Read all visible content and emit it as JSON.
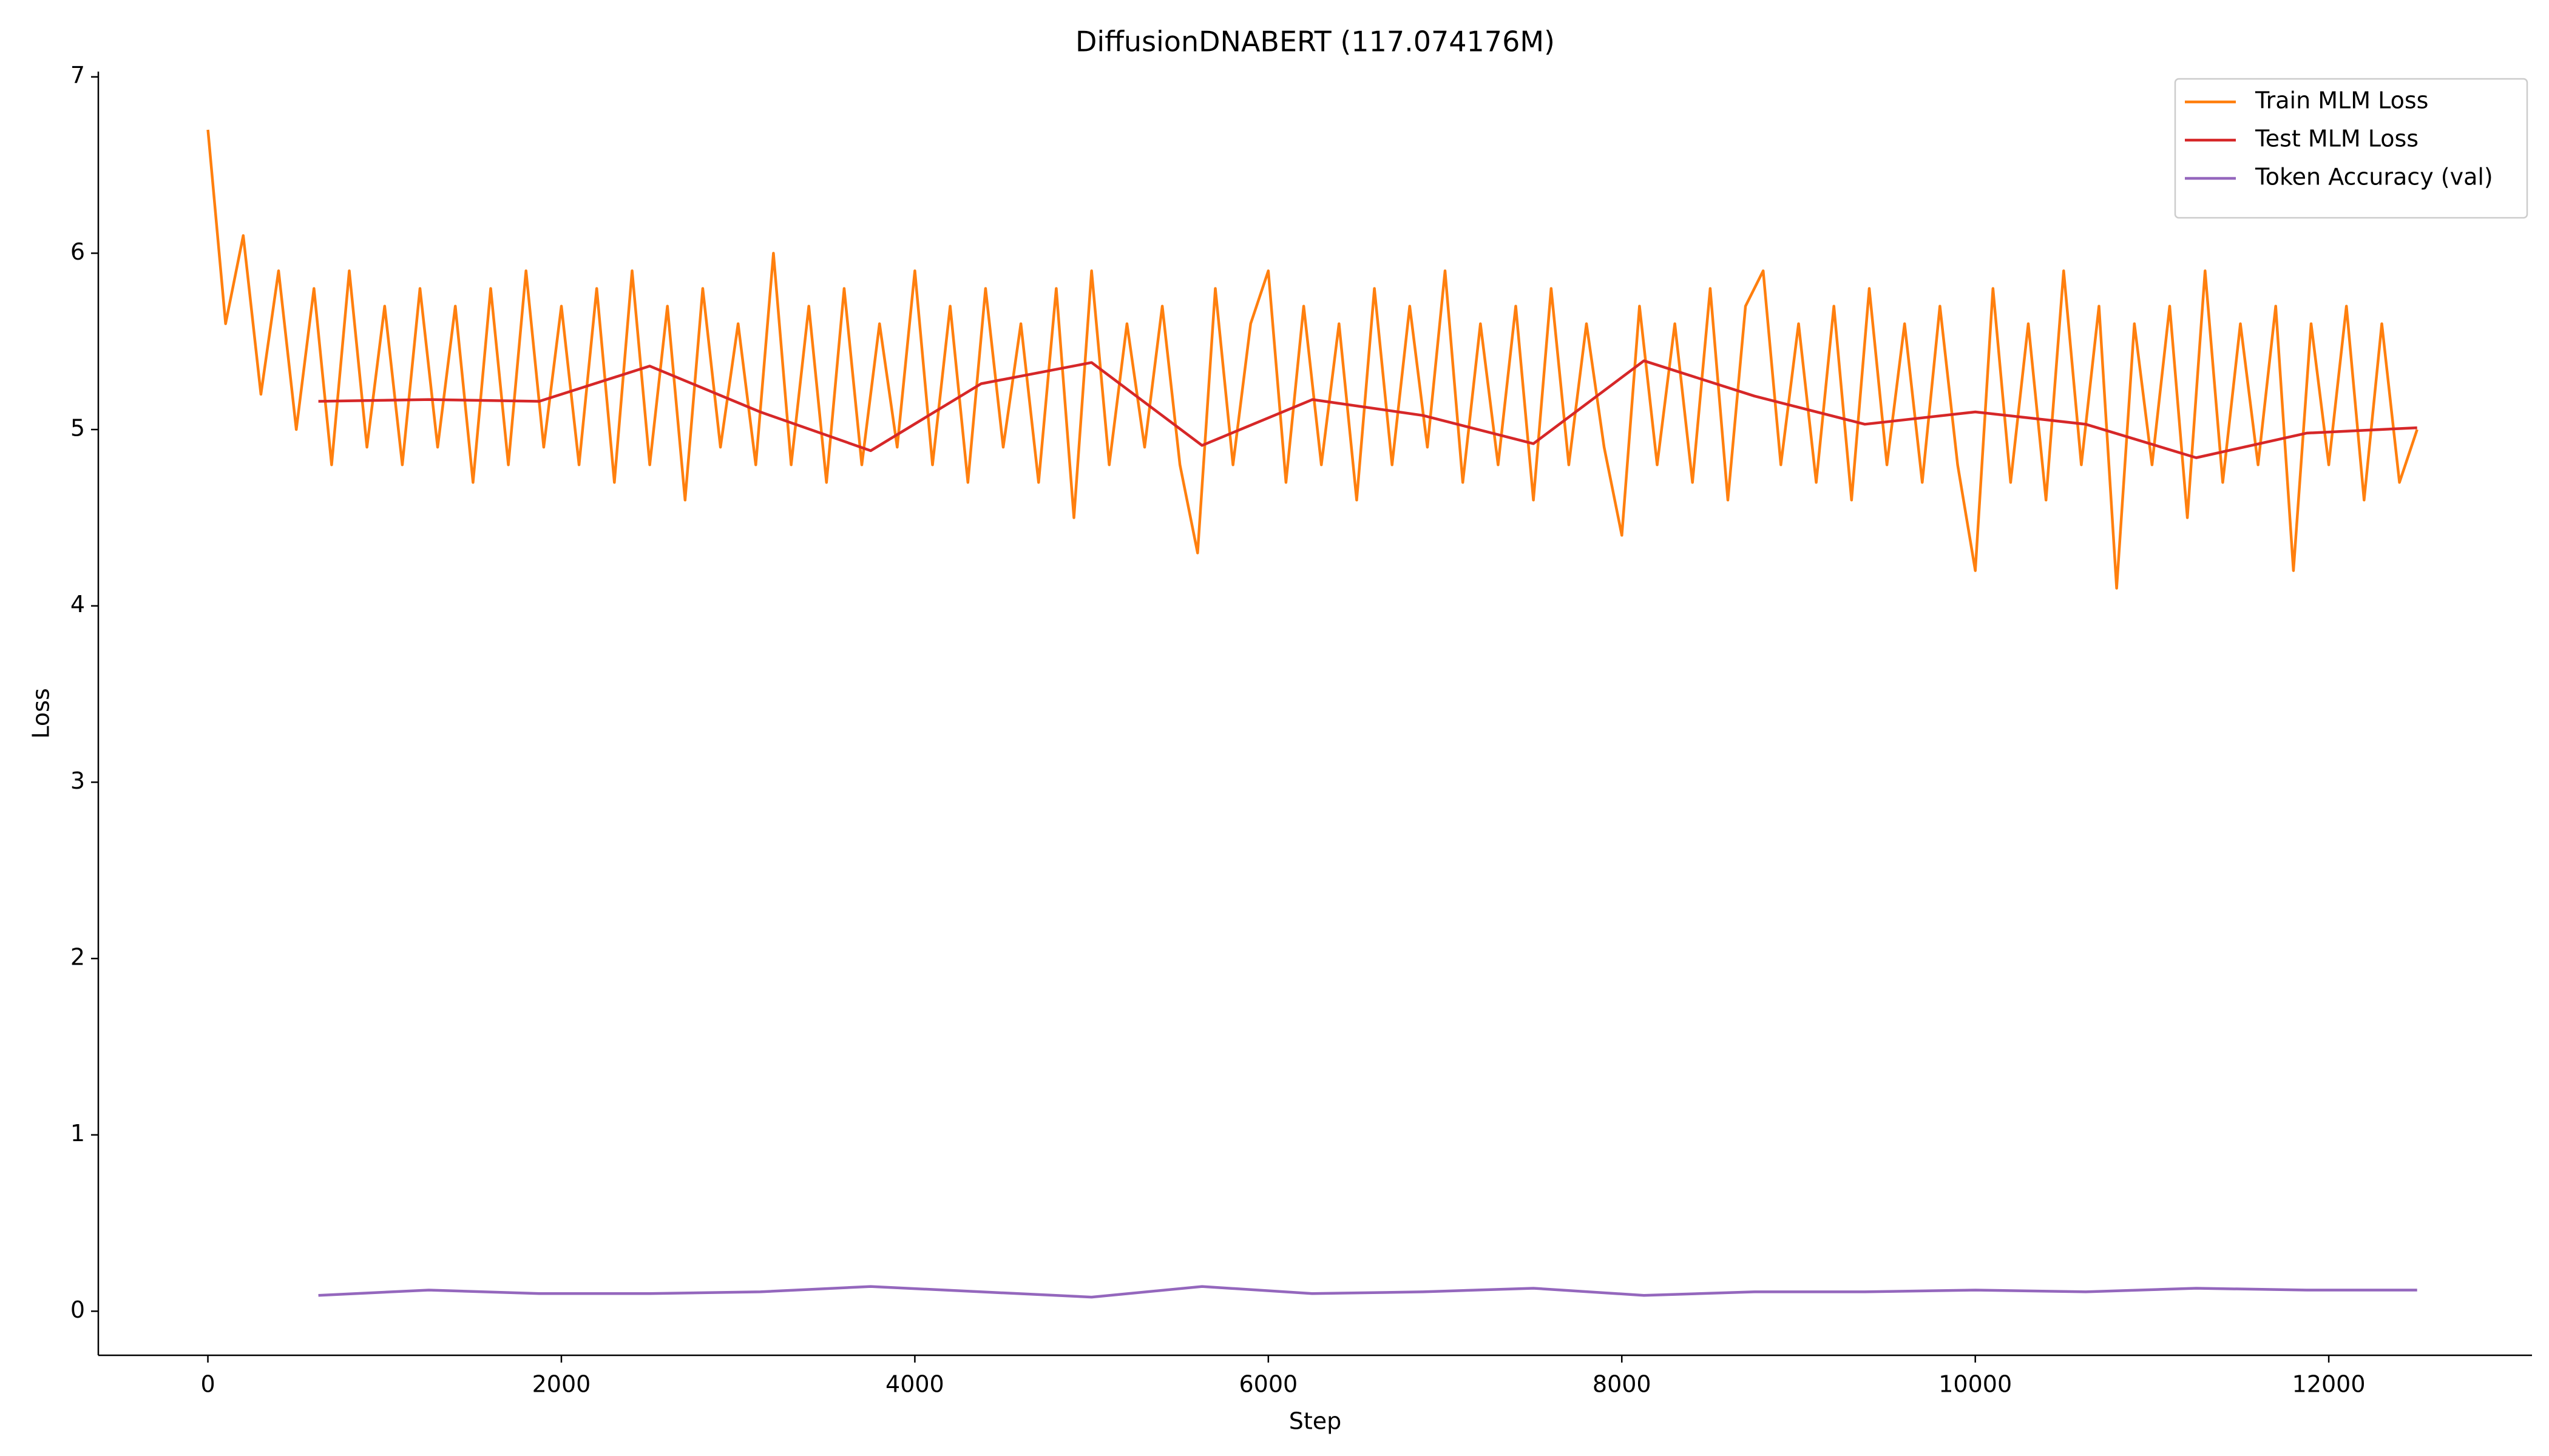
{
  "chart_data": {
    "type": "line",
    "title": "DiffusionDNABERT (117.074176M)",
    "x_label": "Step",
    "y_label": "Loss",
    "xlim": [
      -620,
      13150
    ],
    "xticks": [
      0,
      2000,
      4000,
      6000,
      8000,
      10000,
      12000
    ],
    "ylim": [
      -0.25,
      7.03
    ],
    "yticks": [
      0,
      1,
      2,
      3,
      4,
      5,
      6,
      7
    ],
    "grid": false,
    "legend": "upper right",
    "series": [
      {
        "name": "Train MLM Loss",
        "color": "#ff7f0e",
        "x": [
          0,
          100,
          200,
          300,
          400,
          500,
          600,
          700,
          800,
          900,
          1000,
          1100,
          1200,
          1300,
          1400,
          1500,
          1600,
          1700,
          1800,
          1900,
          2000,
          2100,
          2200,
          2300,
          2400,
          2500,
          2600,
          2700,
          2800,
          2900,
          3000,
          3100,
          3200,
          3300,
          3400,
          3500,
          3600,
          3700,
          3800,
          3900,
          4000,
          4100,
          4200,
          4300,
          4400,
          4500,
          4600,
          4700,
          4800,
          4900,
          5000,
          5100,
          5200,
          5300,
          5400,
          5500,
          5600,
          5700,
          5800,
          5900,
          6000,
          6100,
          6200,
          6300,
          6400,
          6500,
          6600,
          6700,
          6800,
          6900,
          7000,
          7100,
          7200,
          7300,
          7400,
          7500,
          7600,
          7700,
          7800,
          7900,
          8000,
          8100,
          8200,
          8300,
          8400,
          8500,
          8600,
          8700,
          8800,
          8900,
          9000,
          9100,
          9200,
          9300,
          9400,
          9500,
          9600,
          9700,
          9800,
          9900,
          10000,
          10100,
          10200,
          10300,
          10400,
          10500,
          10600,
          10700,
          10800,
          10900,
          11000,
          11100,
          11200,
          11300,
          11400,
          11500,
          11600,
          11700,
          11800,
          11900,
          12000,
          12100,
          12200,
          12300,
          12400,
          12500
        ],
        "values": [
          6.7,
          5.6,
          6.1,
          5.2,
          5.9,
          5.0,
          5.8,
          4.8,
          5.9,
          4.9,
          5.7,
          4.8,
          5.8,
          4.9,
          5.7,
          4.7,
          5.8,
          4.8,
          5.9,
          4.9,
          5.7,
          4.8,
          5.8,
          4.7,
          5.9,
          4.8,
          5.7,
          4.6,
          5.8,
          4.9,
          5.6,
          4.8,
          6.0,
          4.8,
          5.7,
          4.7,
          5.8,
          4.8,
          5.6,
          4.9,
          5.9,
          4.8,
          5.7,
          4.7,
          5.8,
          4.9,
          5.6,
          4.7,
          5.8,
          4.5,
          5.9,
          4.8,
          5.6,
          4.9,
          5.7,
          4.8,
          4.3,
          5.8,
          4.8,
          5.6,
          5.9,
          4.7,
          5.7,
          4.8,
          5.6,
          4.6,
          5.8,
          4.8,
          5.7,
          4.9,
          5.9,
          4.7,
          5.6,
          4.8,
          5.7,
          4.6,
          5.8,
          4.8,
          5.6,
          4.9,
          4.4,
          5.7,
          4.8,
          5.6,
          4.7,
          5.8,
          4.6,
          5.7,
          5.9,
          4.8,
          5.6,
          4.7,
          5.7,
          4.6,
          5.8,
          4.8,
          5.6,
          4.7,
          5.7,
          4.8,
          4.2,
          5.8,
          4.7,
          5.6,
          4.6,
          5.9,
          4.8,
          5.7,
          4.1,
          5.6,
          4.8,
          5.7,
          4.5,
          5.9,
          4.7,
          5.6,
          4.8,
          5.7,
          4.2,
          5.6,
          4.8,
          5.7,
          4.6,
          5.6,
          4.7,
          5.0
        ]
      },
      {
        "name": "Test MLM Loss",
        "color": "#d62728",
        "x": [
          625,
          1250,
          1875,
          2500,
          3125,
          3750,
          4375,
          5000,
          5625,
          6250,
          6875,
          7500,
          8125,
          8750,
          9375,
          10000,
          10625,
          11250,
          11875,
          12500
        ],
        "values": [
          5.16,
          5.17,
          5.16,
          5.36,
          5.1,
          4.88,
          5.26,
          5.38,
          4.91,
          5.17,
          5.08,
          4.92,
          5.39,
          5.19,
          5.03,
          5.1,
          5.03,
          4.84,
          4.98,
          5.01
        ]
      },
      {
        "name": "Token Accuracy (val)",
        "color": "#9467bd",
        "x": [
          625,
          1250,
          1875,
          2500,
          3125,
          3750,
          4375,
          5000,
          5625,
          6250,
          6875,
          7500,
          8125,
          8750,
          9375,
          10000,
          10625,
          11250,
          11875,
          12500
        ],
        "values": [
          0.09,
          0.12,
          0.1,
          0.1,
          0.11,
          0.14,
          0.11,
          0.08,
          0.14,
          0.1,
          0.11,
          0.13,
          0.09,
          0.11,
          0.11,
          0.12,
          0.11,
          0.13,
          0.12,
          0.12
        ]
      }
    ]
  }
}
